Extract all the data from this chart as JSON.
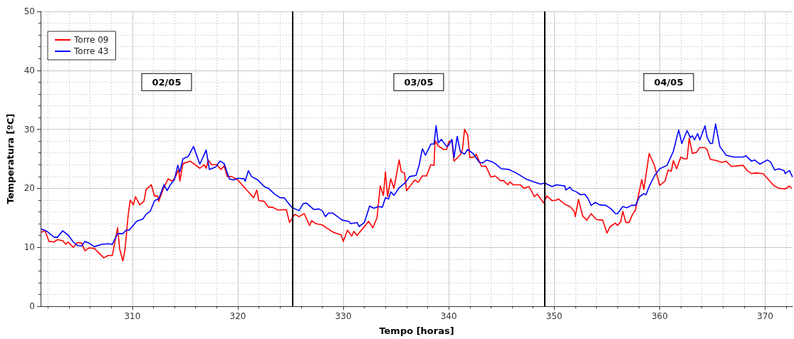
{
  "chart_data": {
    "type": "line",
    "xlabel": "Tempo [horas]",
    "ylabel": "Temperatura [ºC]",
    "xlim": [
      301.3,
      372.6
    ],
    "xticks": [
      310,
      320,
      330,
      340,
      350,
      360,
      370
    ],
    "ylim": [
      0,
      50
    ],
    "yticks": [
      0,
      10,
      20,
      30,
      40,
      50
    ],
    "grid": true,
    "legend": "top left",
    "ref_lines": [
      {
        "axis": "x",
        "value": 325.2,
        "color": "#000000"
      },
      {
        "axis": "x",
        "value": 349.1,
        "color": "#000000"
      }
    ],
    "annotations": [
      "02/05",
      "03/05",
      "04/05"
    ],
    "series": [
      {
        "name": "Torre 09",
        "color": "#ff0000",
        "x": [
          301.36,
          301.7,
          302.1,
          302.6,
          302.9,
          303.4,
          303.7,
          303.9,
          304.4,
          304.8,
          305.2,
          305.5,
          305.9,
          306.4,
          307.3,
          307.7,
          308.1,
          308.6,
          308.8,
          309.1,
          309.3,
          309.6,
          309.8,
          310.1,
          310.3,
          310.7,
          311.1,
          311.3,
          311.8,
          312.1,
          312.4,
          312.5,
          313.0,
          313.4,
          313.8,
          314.1,
          314.4,
          314.5,
          314.8,
          315.5,
          316.4,
          316.8,
          317.0,
          317.2,
          317.5,
          318.0,
          318.4,
          318.7,
          319.0,
          319.4,
          320.0,
          320.6,
          320.9,
          321.5,
          321.8,
          322.0,
          322.5,
          322.9,
          323.3,
          323.8,
          324.6,
          324.9,
          325.4,
          325.8,
          326.3,
          326.8,
          327.0,
          327.4,
          328.0,
          328.4,
          329.1,
          329.8,
          330.0,
          330.4,
          330.8,
          331.0,
          331.3,
          331.9,
          332.4,
          332.8,
          333.2,
          333.5,
          333.8,
          334.0,
          334.2,
          334.5,
          334.8,
          335.3,
          335.5,
          335.8,
          336.0,
          336.6,
          336.8,
          337.1,
          337.5,
          337.9,
          338.3,
          338.6,
          338.7,
          339.0,
          339.5,
          339.8,
          340.0,
          340.3,
          340.5,
          341.1,
          341.3,
          341.5,
          341.8,
          342.0,
          342.4,
          342.6,
          343.1,
          343.5,
          344.0,
          344.4,
          344.9,
          345.2,
          345.6,
          345.8,
          346.1,
          346.8,
          347.1,
          347.6,
          347.8,
          348.1,
          348.4,
          349.0,
          349.3,
          349.8,
          350.2,
          350.4,
          351.0,
          351.5,
          351.9,
          352.0,
          352.3,
          352.7,
          353.1,
          353.5,
          354.0,
          354.6,
          355.0,
          355.3,
          355.8,
          356.0,
          356.3,
          356.5,
          356.8,
          357.1,
          357.4,
          357.7,
          358.3,
          358.5,
          359.0,
          359.5,
          360.0,
          360.5,
          360.8,
          361.1,
          361.3,
          361.6,
          362.0,
          362.3,
          362.6,
          362.8,
          363.1,
          363.5,
          363.8,
          364.3,
          364.5,
          364.8,
          365.4,
          365.9,
          366.3,
          366.8,
          367.9,
          368.3,
          368.7,
          369.1,
          369.8,
          370.2,
          370.8,
          371.3,
          371.9,
          372.3,
          372.5
        ],
        "values": [
          12.5,
          12.9,
          11.0,
          10.9,
          11.3,
          11.1,
          10.5,
          10.9,
          10.0,
          10.8,
          10.7,
          9.4,
          9.9,
          9.8,
          8.2,
          8.6,
          8.6,
          13.3,
          9.7,
          7.7,
          9.5,
          15.4,
          18.0,
          17.2,
          18.6,
          17.2,
          17.8,
          19.8,
          20.6,
          18.7,
          18.7,
          17.8,
          20.2,
          21.6,
          21.2,
          22.0,
          23.2,
          21.2,
          24.2,
          24.6,
          23.4,
          24.0,
          23.4,
          24.8,
          24.0,
          24.0,
          23.2,
          23.8,
          22.0,
          22.0,
          21.4,
          20.2,
          19.6,
          18.4,
          19.7,
          17.9,
          17.8,
          16.8,
          16.8,
          16.3,
          16.4,
          14.2,
          15.6,
          15.2,
          15.7,
          13.7,
          14.5,
          14.0,
          13.8,
          13.3,
          12.5,
          12.1,
          11.0,
          12.9,
          11.9,
          12.7,
          12.0,
          13.3,
          14.4,
          13.3,
          15.0,
          20.4,
          18.8,
          22.8,
          18.6,
          21.6,
          20.0,
          24.8,
          22.8,
          22.6,
          19.6,
          21.0,
          21.4,
          21.0,
          22.1,
          22.1,
          24.0,
          23.9,
          28.1,
          27.2,
          26.6,
          26.6,
          27.9,
          28.1,
          24.6,
          25.7,
          26.6,
          30.0,
          29.0,
          25.2,
          25.3,
          25.8,
          23.7,
          23.8,
          21.9,
          22.1,
          21.3,
          21.3,
          20.6,
          21.1,
          20.6,
          20.6,
          20.0,
          20.3,
          19.7,
          18.6,
          19.0,
          17.5,
          18.7,
          17.9,
          18.0,
          18.2,
          17.3,
          16.9,
          16.1,
          15.2,
          18.1,
          15.3,
          14.6,
          15.7,
          14.7,
          14.6,
          12.4,
          13.5,
          14.1,
          13.7,
          14.3,
          16.1,
          14.2,
          14.2,
          15.5,
          16.3,
          21.5,
          19.8,
          25.9,
          23.9,
          20.5,
          21.2,
          23.1,
          22.9,
          24.7,
          23.3,
          25.3,
          25.0,
          25.0,
          28.5,
          25.9,
          26.1,
          26.9,
          26.9,
          26.5,
          24.9,
          24.7,
          24.4,
          24.6,
          23.7,
          23.9,
          23.0,
          22.5,
          22.6,
          22.5,
          21.7,
          20.5,
          20.0,
          19.9,
          20.4,
          20.0
        ]
      },
      {
        "name": "Torre 43",
        "color": "#0000ff",
        "x": [
          301.36,
          301.9,
          302.6,
          302.9,
          303.4,
          303.8,
          303.9,
          304.4,
          304.8,
          305.2,
          305.5,
          305.9,
          306.4,
          307.1,
          307.7,
          308.1,
          308.6,
          309.1,
          309.4,
          309.7,
          310.4,
          311.0,
          311.3,
          311.7,
          312.1,
          312.5,
          313.0,
          313.3,
          313.6,
          314.0,
          314.3,
          314.5,
          314.8,
          315.3,
          315.8,
          316.4,
          317.0,
          317.3,
          317.9,
          318.3,
          318.7,
          319.2,
          319.6,
          320.0,
          320.6,
          320.7,
          321.0,
          321.3,
          321.9,
          322.5,
          322.9,
          323.5,
          324.0,
          324.4,
          325.1,
          325.8,
          326.2,
          326.5,
          327.2,
          327.7,
          328.0,
          328.3,
          328.6,
          329.0,
          329.9,
          330.5,
          330.7,
          331.3,
          331.5,
          332.0,
          332.5,
          332.9,
          333.3,
          333.7,
          334.0,
          334.3,
          334.5,
          334.8,
          335.3,
          335.9,
          336.3,
          336.9,
          337.2,
          337.5,
          337.8,
          338.3,
          338.6,
          338.8,
          339.0,
          339.3,
          339.8,
          340.0,
          340.3,
          340.5,
          340.8,
          341.1,
          341.5,
          341.8,
          342.3,
          342.9,
          343.2,
          343.6,
          344.1,
          344.4,
          345.0,
          345.7,
          346.4,
          347.3,
          347.9,
          348.7,
          349.1,
          349.8,
          350.2,
          351.0,
          351.1,
          351.5,
          351.7,
          352.1,
          352.5,
          352.9,
          353.2,
          353.5,
          353.9,
          354.3,
          354.9,
          355.4,
          355.8,
          356.0,
          356.5,
          356.9,
          357.3,
          357.7,
          358.1,
          358.5,
          358.7,
          359.0,
          359.5,
          360.0,
          360.7,
          361.3,
          361.8,
          362.1,
          362.6,
          362.9,
          363.1,
          363.3,
          363.6,
          363.8,
          364.3,
          364.5,
          364.8,
          365.0,
          365.3,
          365.7,
          366.3,
          367.0,
          367.9,
          368.2,
          368.7,
          369.0,
          369.5,
          370.2,
          370.5,
          370.9,
          371.3,
          371.8,
          371.9,
          372.3,
          372.6
        ],
        "values": [
          13.1,
          12.7,
          11.7,
          11.7,
          12.8,
          12.2,
          12.1,
          10.9,
          10.3,
          10.2,
          11.0,
          10.7,
          10.1,
          10.5,
          10.6,
          10.5,
          12.3,
          12.3,
          12.9,
          12.9,
          14.4,
          14.8,
          15.6,
          16.1,
          17.9,
          18.2,
          20.6,
          19.6,
          20.6,
          21.5,
          23.9,
          22.8,
          25.0,
          25.4,
          27.1,
          24.1,
          26.5,
          23.2,
          23.6,
          24.6,
          24.2,
          21.6,
          21.4,
          21.7,
          21.6,
          21.2,
          23.0,
          22.0,
          21.4,
          20.3,
          20.0,
          19.0,
          18.4,
          18.4,
          16.8,
          16.2,
          17.4,
          17.5,
          16.4,
          16.5,
          16.2,
          15.2,
          15.8,
          15.8,
          14.6,
          14.4,
          14.0,
          14.2,
          13.5,
          14.2,
          17.0,
          16.6,
          16.9,
          16.8,
          18.4,
          18.2,
          19.4,
          18.8,
          20.1,
          21.0,
          22.0,
          22.2,
          24.0,
          26.7,
          25.6,
          27.5,
          27.5,
          30.6,
          27.7,
          28.3,
          27.1,
          27.3,
          28.3,
          25.2,
          28.8,
          26.2,
          25.8,
          26.6,
          25.9,
          24.4,
          24.3,
          24.8,
          24.5,
          24.2,
          23.3,
          23.2,
          22.6,
          21.6,
          21.2,
          20.7,
          20.9,
          20.3,
          20.6,
          20.4,
          19.7,
          20.2,
          19.7,
          19.4,
          18.9,
          19.0,
          18.3,
          17.1,
          17.6,
          17.2,
          17.1,
          16.5,
          15.7,
          15.7,
          16.9,
          16.7,
          17.1,
          17.1,
          18.6,
          19.1,
          18.9,
          20.3,
          22.1,
          23.3,
          23.9,
          26.3,
          29.9,
          27.6,
          29.8,
          28.6,
          28.9,
          28.2,
          29.3,
          28.2,
          30.6,
          28.6,
          27.6,
          27.6,
          30.9,
          27.1,
          25.6,
          25.3,
          25.3,
          25.5,
          24.6,
          24.8,
          24.1,
          24.8,
          24.5,
          23.1,
          23.3,
          23.0,
          22.5,
          23.0,
          21.9
        ]
      }
    ]
  }
}
